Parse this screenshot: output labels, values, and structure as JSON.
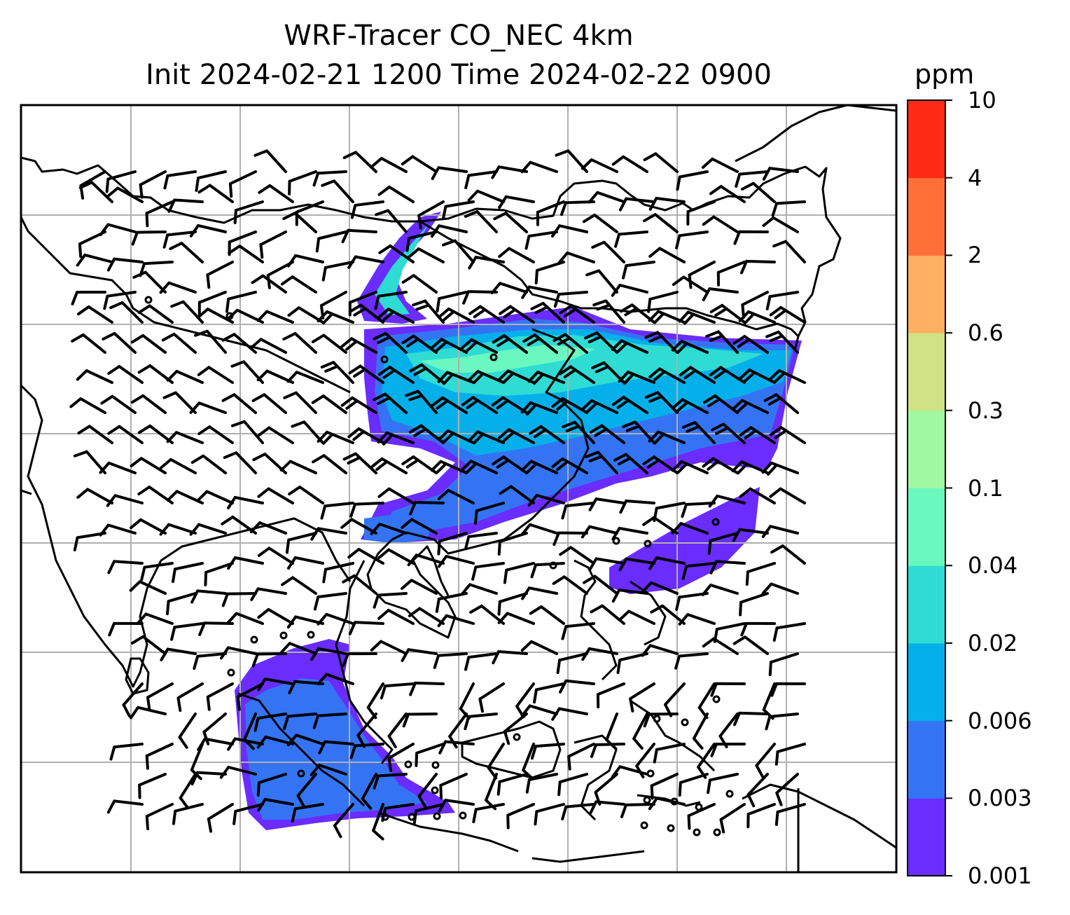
{
  "title_line1": "WRF-Tracer CO_NEC 4km",
  "title_line2": "Init 2024-02-21 1200 Time 2024-02-22 0900",
  "colorbar": {
    "units": "ppm",
    "levels": [
      "0.001",
      "0.003",
      "0.006",
      "0.02",
      "0.04",
      "0.1",
      "0.3",
      "0.6",
      "2",
      "4",
      "10"
    ],
    "colors": [
      "#6a2cff",
      "#3474f4",
      "#05b0ea",
      "#2edcd4",
      "#6af8c0",
      "#a0f8a0",
      "#d0e286",
      "#ffb060",
      "#ff7038",
      "#ff2a16"
    ]
  },
  "map": {
    "gridlines": true,
    "gridline_color": "#b0b0b0",
    "coastline_color": "#000000",
    "wind_barb_color": "#000000",
    "plume_description_colors": {
      "low": "#6a2cff",
      "mid": "#3474f4",
      "high": "#05b0ea",
      "higher": "#2edcd4",
      "peak": "#6af8c0"
    }
  }
}
